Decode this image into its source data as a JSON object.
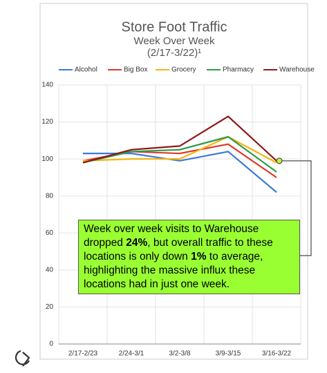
{
  "chart_data": {
    "type": "line",
    "title": "Store Foot Traffic",
    "subtitle": "Week Over Week",
    "subtitle2": "(2/17-3/22)¹",
    "categories": [
      "2/17-2/23",
      "2/24-3/1",
      "3/2-3/8",
      "3/9-3/15",
      "3/16-3/22"
    ],
    "series": [
      {
        "name": "Alcohol",
        "color": "#3c78d8",
        "values": [
          103,
          103,
          99,
          104,
          82
        ]
      },
      {
        "name": "Big Box",
        "color": "#e0392b",
        "values": [
          99,
          104,
          103,
          108,
          90
        ]
      },
      {
        "name": "Grocery",
        "color": "#f6b40e",
        "values": [
          99,
          100,
          100,
          112,
          98
        ]
      },
      {
        "name": "Pharmacy",
        "color": "#2f9a4b",
        "values": [
          98,
          104,
          105,
          112,
          93
        ]
      },
      {
        "name": "Warehouse",
        "color": "#8b1a1a",
        "values": [
          98,
          105,
          107,
          123,
          99
        ]
      }
    ],
    "ylim": [
      0,
      140
    ],
    "yticks": [
      0,
      20,
      40,
      60,
      80,
      100,
      120,
      140
    ],
    "grid": true,
    "annotation": [
      "Week over week visits to Warehouse dropped ",
      "24%",
      ", but overall traffic to these locations is only down ",
      "1%",
      " to average, highlighting the massive influx these locations had in just one week."
    ]
  }
}
